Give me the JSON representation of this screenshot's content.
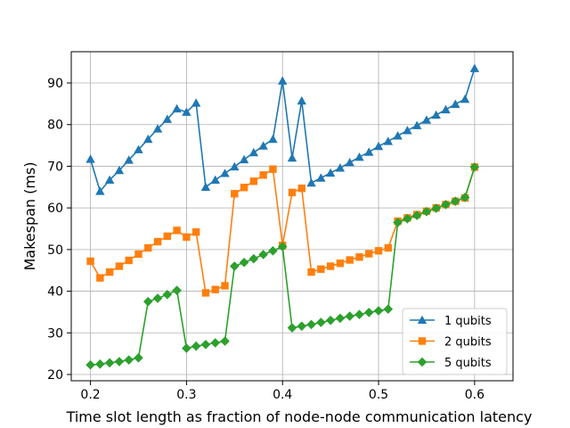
{
  "chart_data": {
    "type": "line",
    "title": "",
    "xlabel": "Time slot length as fraction of node-node communication latency",
    "ylabel": "Makespan (ms)",
    "xlim": [
      0.18,
      0.64
    ],
    "ylim": [
      18.5,
      97.5
    ],
    "xticks": [
      0.2,
      0.3,
      0.4,
      0.5,
      0.6
    ],
    "xtick_labels": [
      "0.2",
      "0.3",
      "0.4",
      "0.5",
      "0.6"
    ],
    "yticks": [
      20,
      30,
      40,
      50,
      60,
      70,
      80,
      90
    ],
    "ytick_labels": [
      "20",
      "30",
      "40",
      "50",
      "60",
      "70",
      "80",
      "90"
    ],
    "grid": true,
    "legend_position": "bottom-right",
    "x": [
      0.2,
      0.21,
      0.22,
      0.23,
      0.24,
      0.25,
      0.26,
      0.27,
      0.28,
      0.29,
      0.3,
      0.31,
      0.32,
      0.33,
      0.34,
      0.35,
      0.36,
      0.37,
      0.38,
      0.39,
      0.4,
      0.41,
      0.42,
      0.43,
      0.44,
      0.45,
      0.46,
      0.47,
      0.48,
      0.49,
      0.5,
      0.51,
      0.52,
      0.53,
      0.54,
      0.55,
      0.56,
      0.57,
      0.58,
      0.59,
      0.6
    ],
    "series": [
      {
        "name": "1 qubits",
        "color": "#1f77b4",
        "marker": "triangle",
        "values": [
          71.7,
          64.0,
          66.7,
          69.0,
          71.5,
          74.0,
          76.5,
          79.0,
          81.3,
          83.8,
          83.0,
          85.2,
          65.0,
          66.7,
          68.3,
          69.9,
          71.6,
          73.3,
          74.9,
          76.5,
          90.5,
          72.0,
          85.7,
          66.0,
          67.2,
          68.4,
          69.6,
          70.9,
          72.2,
          73.4,
          74.8,
          76.0,
          77.3,
          78.6,
          79.8,
          81.1,
          82.3,
          83.6,
          84.9,
          86.1,
          93.5
        ]
      },
      {
        "name": "2 qubits",
        "color": "#ff7f0e",
        "marker": "square",
        "values": [
          47.2,
          43.2,
          44.6,
          46.0,
          47.4,
          48.9,
          50.4,
          51.9,
          53.2,
          54.6,
          53.0,
          54.2,
          39.6,
          40.4,
          41.3,
          63.4,
          64.9,
          66.4,
          67.9,
          69.3,
          51.0,
          63.7,
          64.7,
          44.6,
          45.3,
          46.0,
          46.7,
          47.5,
          48.2,
          49.0,
          49.7,
          50.4,
          56.8,
          57.6,
          58.4,
          59.2,
          60.0,
          60.8,
          61.6,
          62.4,
          69.8
        ]
      },
      {
        "name": "5 qubits",
        "color": "#2ca02c",
        "marker": "diamond",
        "values": [
          22.3,
          22.5,
          22.8,
          23.1,
          23.5,
          24.0,
          37.5,
          38.3,
          39.2,
          40.2,
          26.3,
          26.8,
          27.2,
          27.6,
          28.0,
          46.0,
          46.9,
          47.8,
          48.8,
          49.7,
          50.7,
          31.2,
          31.6,
          32.0,
          32.5,
          33.0,
          33.5,
          34.0,
          34.4,
          34.9,
          35.3,
          35.7,
          56.5,
          57.4,
          58.2,
          59.1,
          59.9,
          60.8,
          61.6,
          62.5,
          69.8
        ]
      }
    ]
  }
}
